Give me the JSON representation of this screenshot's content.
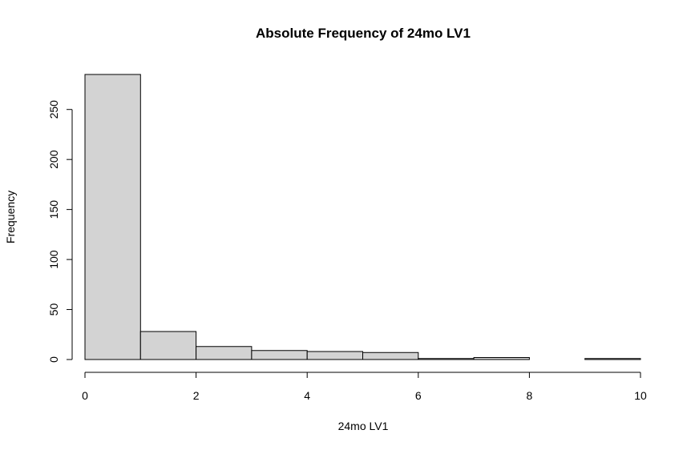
{
  "chart_data": {
    "type": "bar",
    "title": "Absolute Frequency of 24mo LV1",
    "xlabel": "24mo LV1",
    "ylabel": "Frequency",
    "bins": [
      [
        0,
        1
      ],
      [
        1,
        2
      ],
      [
        2,
        3
      ],
      [
        3,
        4
      ],
      [
        4,
        5
      ],
      [
        5,
        6
      ],
      [
        6,
        7
      ],
      [
        7,
        8
      ],
      [
        8,
        9
      ],
      [
        9,
        10
      ]
    ],
    "values": [
      285,
      28,
      13,
      9,
      8,
      7,
      1,
      2,
      0,
      1
    ],
    "xlim": [
      0,
      10
    ],
    "ylim": [
      0,
      285
    ],
    "x_ticks": [
      "0",
      "2",
      "4",
      "6",
      "8",
      "10"
    ],
    "y_ticks": [
      "0",
      "50",
      "100",
      "150",
      "200",
      "250"
    ],
    "bar_color": "#d3d3d3",
    "grid": false,
    "legend": "none"
  }
}
